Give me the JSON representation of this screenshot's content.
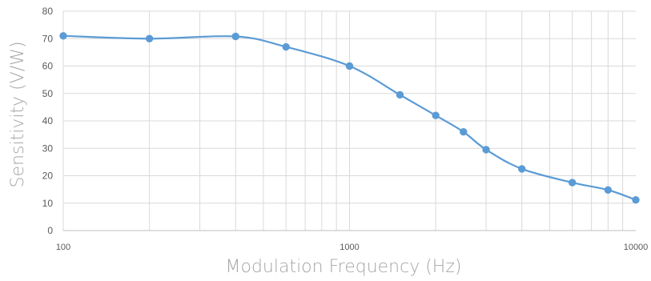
{
  "chart_data": {
    "type": "line",
    "xscale": "log",
    "xlabel": "Modulation Frequency (Hz)",
    "ylabel": "Sensitivity (V/W)",
    "xlim": [
      100,
      10000
    ],
    "ylim": [
      0,
      80
    ],
    "ytick_step": 10,
    "yticks": [
      "0",
      "10",
      "20",
      "30",
      "40",
      "50",
      "60",
      "70",
      "80"
    ],
    "xticks": [
      "100",
      "1000",
      "10000"
    ],
    "grid": true,
    "legend": "none",
    "series": [
      {
        "color": "#5b9bd5",
        "marker": "circle",
        "smooth": true,
        "x": [
          100,
          200,
          400,
          600,
          1000,
          1500,
          2000,
          2500,
          3000,
          4000,
          6000,
          8000,
          10000
        ],
        "y": [
          71,
          70,
          70.8,
          67,
          60,
          49.5,
          42,
          36,
          29.5,
          22.5,
          17.5,
          14.8,
          11.2
        ]
      }
    ]
  }
}
